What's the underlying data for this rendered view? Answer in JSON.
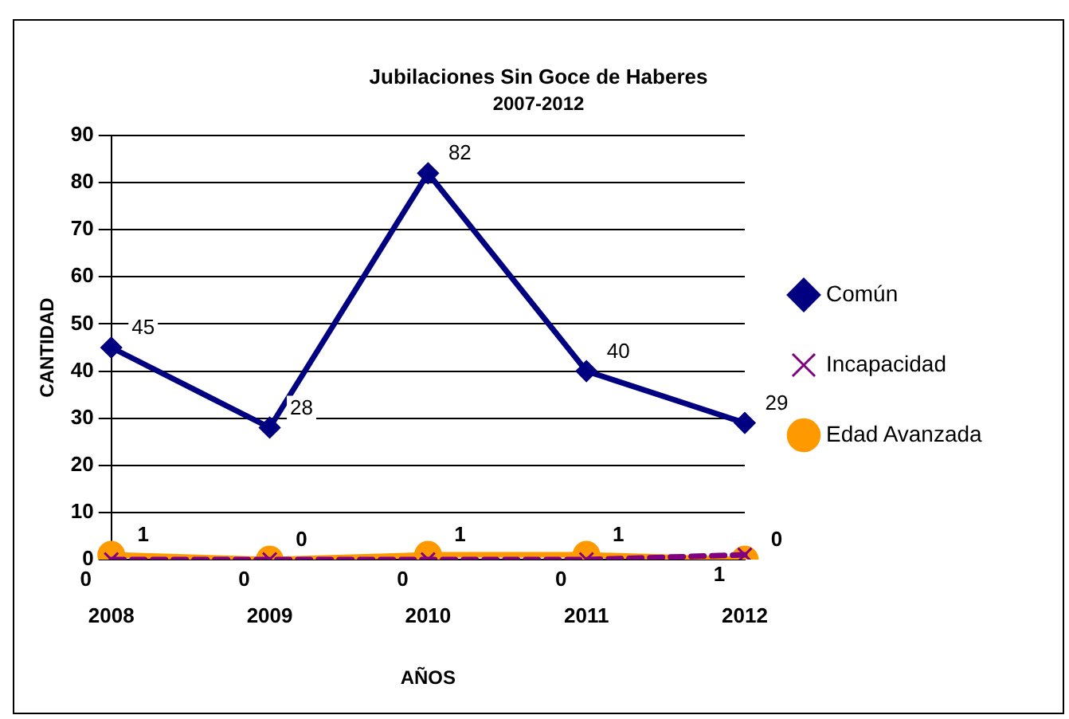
{
  "chart_data": {
    "type": "line",
    "title": "Jubilaciones Sin Goce de Haberes",
    "subtitle": "2007-2012",
    "xlabel": "AÑOS",
    "ylabel": "CANTIDAD",
    "categories": [
      "2008",
      "2009",
      "2010",
      "2011",
      "2012"
    ],
    "series": [
      {
        "name": "Común",
        "color": "#000080",
        "values": [
          45,
          28,
          82,
          40,
          29
        ],
        "marker": "diamond",
        "line_style": "solid"
      },
      {
        "name": "Incapacidad",
        "color": "#800080",
        "values": [
          0,
          0,
          0,
          0,
          1
        ],
        "marker": "cross",
        "line_style": "dashed"
      },
      {
        "name": "Edad Avanzada",
        "color": "#ff9900",
        "values": [
          1,
          0,
          1,
          1,
          0
        ],
        "marker": "circle",
        "line_style": "solid"
      }
    ],
    "ylim": [
      0,
      90
    ],
    "yticks": [
      0,
      10,
      20,
      30,
      40,
      50,
      60,
      70,
      80,
      90
    ],
    "grid": "y",
    "legend": "right",
    "data_labels": true
  }
}
